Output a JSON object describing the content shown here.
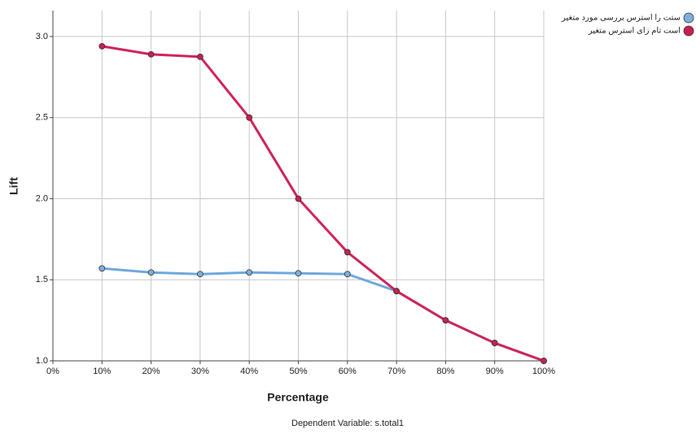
{
  "chart_data": {
    "type": "line",
    "x_label": "Percentage",
    "y_label": "Lift",
    "footnote": "Dependent Variable: s.total1",
    "x": [
      10,
      20,
      30,
      40,
      50,
      60,
      70,
      80,
      90,
      100
    ],
    "series": [
      {
        "name": "ستت را استرس بررسی مورد متغیر",
        "color": "#6fa8dc",
        "marker_color": "#7eaedb",
        "values": [
          1.57,
          1.545,
          1.535,
          1.545,
          1.54,
          1.535,
          1.43,
          1.25,
          1.11,
          1.0
        ]
      },
      {
        "name": "است تام زای استرس متغیر",
        "color": "#d0245a",
        "marker_color": "#c8204f",
        "values": [
          2.94,
          2.89,
          2.875,
          2.5,
          2.0,
          1.67,
          1.43,
          1.25,
          1.11,
          1.0
        ]
      }
    ],
    "xlim": [
      0,
      100
    ],
    "xticks": [
      {
        "value": 0,
        "label": "0%"
      },
      {
        "value": 10,
        "label": "10%"
      },
      {
        "value": 20,
        "label": "20%"
      },
      {
        "value": 30,
        "label": "30%"
      },
      {
        "value": 40,
        "label": "40%"
      },
      {
        "value": 50,
        "label": "50%"
      },
      {
        "value": 60,
        "label": "60%"
      },
      {
        "value": 70,
        "label": "70%"
      },
      {
        "value": 80,
        "label": "80%"
      },
      {
        "value": 90,
        "label": "90%"
      },
      {
        "value": 100,
        "label": "100%"
      }
    ],
    "ylim": [
      1,
      3.16
    ],
    "yticks": [
      {
        "value": 1,
        "label": "1.0"
      },
      1.5,
      {
        "value": 2,
        "label": "2.0"
      },
      2.5,
      {
        "value": 3,
        "label": "3.0"
      }
    ],
    "grid": true,
    "legend": "top-right"
  }
}
